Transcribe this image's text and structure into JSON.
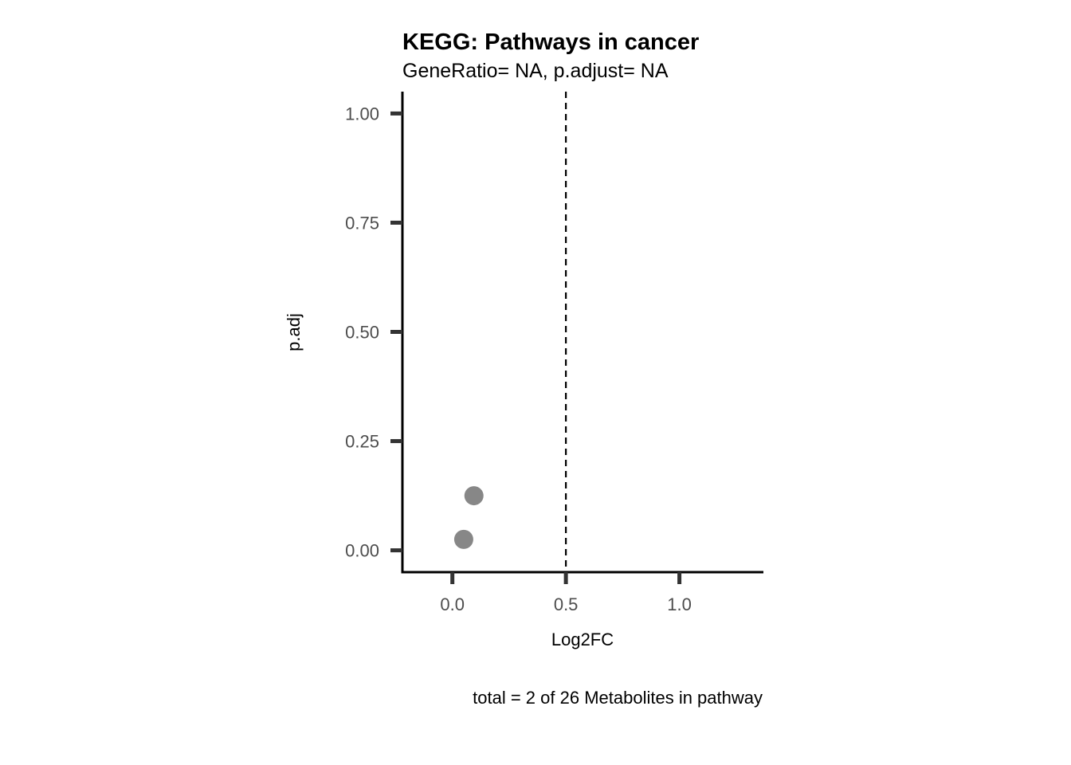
{
  "chart_data": {
    "type": "scatter",
    "title": "KEGG: Pathways in cancer",
    "subtitle": "GeneRatio= NA, p.adjust= NA",
    "xlabel": "Log2FC",
    "ylabel": "p.adj",
    "caption": "total = 2 of 26 Metabolites in pathway",
    "xlim": [
      -0.22,
      1.37
    ],
    "ylim": [
      -0.05,
      1.05
    ],
    "x_ticks": [
      0.0,
      0.5,
      1.0
    ],
    "x_tick_labels": [
      "0.0",
      "0.5",
      "1.0"
    ],
    "y_ticks": [
      0.0,
      0.25,
      0.5,
      0.75,
      1.0
    ],
    "y_tick_labels": [
      "0.00",
      "0.25",
      "0.50",
      "0.75",
      "1.00"
    ],
    "vline": 0.5,
    "grid": false,
    "point_color": "#878787",
    "points": [
      {
        "x": 0.095,
        "y": 0.125
      },
      {
        "x": 0.05,
        "y": 0.025
      }
    ]
  }
}
